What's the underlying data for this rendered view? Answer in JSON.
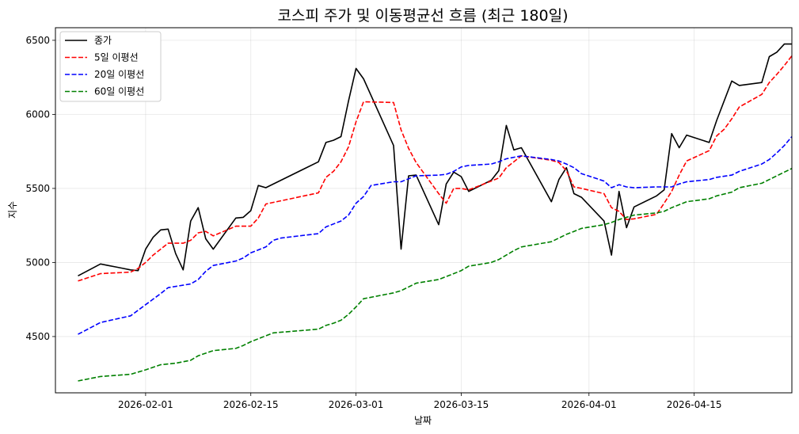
{
  "chart_data": {
    "type": "line",
    "title": "코스피 주가 및 이동평균선 흐름 (최근 180일)",
    "xlabel": "날짜",
    "ylabel": "지수",
    "x_range": [
      "2026-01-20",
      "2026-04-28"
    ],
    "ylim": [
      4120,
      6585
    ],
    "grid": true,
    "legend_position": "top-left",
    "x_ticks": [
      "2026-02-01",
      "2026-02-15",
      "2026-03-01",
      "2026-03-15",
      "2026-04-01",
      "2026-04-15"
    ],
    "y_ticks": [
      4500,
      5000,
      5500,
      6000,
      6500
    ],
    "series": [
      {
        "name": "종가",
        "color": "#000000",
        "dash": "solid",
        "points": [
          [
            "2026-01-23",
            4910
          ],
          [
            "2026-01-26",
            4990
          ],
          [
            "2026-01-27",
            4980
          ],
          [
            "2026-01-28",
            4970
          ],
          [
            "2026-01-29",
            4960
          ],
          [
            "2026-01-30",
            4950
          ],
          [
            "2026-01-31",
            4945
          ],
          [
            "2026-02-01",
            5090
          ],
          [
            "2026-02-02",
            5170
          ],
          [
            "2026-02-03",
            5220
          ],
          [
            "2026-02-04",
            5225
          ],
          [
            "2026-02-05",
            5060
          ],
          [
            "2026-02-06",
            4950
          ],
          [
            "2026-02-07",
            5280
          ],
          [
            "2026-02-08",
            5370
          ],
          [
            "2026-02-09",
            5160
          ],
          [
            "2026-02-10",
            5090
          ],
          [
            "2026-02-13",
            5300
          ],
          [
            "2026-02-14",
            5305
          ],
          [
            "2026-02-15",
            5350
          ],
          [
            "2026-02-16",
            5520
          ],
          [
            "2026-02-17",
            5505
          ],
          [
            "2026-02-24",
            5680
          ],
          [
            "2026-02-25",
            5810
          ],
          [
            "2026-02-26",
            5825
          ],
          [
            "2026-02-27",
            5850
          ],
          [
            "2026-02-28",
            6090
          ],
          [
            "2026-03-01",
            6310
          ],
          [
            "2026-03-02",
            6240
          ],
          [
            "2026-03-06",
            5790
          ],
          [
            "2026-03-07",
            5090
          ],
          [
            "2026-03-08",
            5585
          ],
          [
            "2026-03-09",
            5590
          ],
          [
            "2026-03-12",
            5255
          ],
          [
            "2026-03-13",
            5530
          ],
          [
            "2026-03-14",
            5610
          ],
          [
            "2026-03-15",
            5580
          ],
          [
            "2026-03-16",
            5480
          ],
          [
            "2026-03-19",
            5555
          ],
          [
            "2026-03-20",
            5620
          ],
          [
            "2026-03-21",
            5925
          ],
          [
            "2026-03-22",
            5760
          ],
          [
            "2026-03-23",
            5775
          ],
          [
            "2026-03-27",
            5410
          ],
          [
            "2026-03-28",
            5560
          ],
          [
            "2026-03-29",
            5640
          ],
          [
            "2026-03-30",
            5465
          ],
          [
            "2026-03-31",
            5440
          ],
          [
            "2026-04-03",
            5280
          ],
          [
            "2026-04-04",
            5050
          ],
          [
            "2026-04-05",
            5480
          ],
          [
            "2026-04-06",
            5235
          ],
          [
            "2026-04-07",
            5375
          ],
          [
            "2026-04-10",
            5450
          ],
          [
            "2026-04-11",
            5490
          ],
          [
            "2026-04-12",
            5870
          ],
          [
            "2026-04-13",
            5775
          ],
          [
            "2026-04-14",
            5860
          ],
          [
            "2026-04-17",
            5810
          ],
          [
            "2026-04-18",
            5960
          ],
          [
            "2026-04-20",
            6225
          ],
          [
            "2026-04-21",
            6195
          ],
          [
            "2026-04-24",
            6215
          ],
          [
            "2026-04-25",
            6390
          ],
          [
            "2026-04-26",
            6420
          ],
          [
            "2026-04-27",
            6475
          ],
          [
            "2026-04-28",
            6475
          ]
        ]
      },
      {
        "name": "5일 이평선",
        "color": "#ff0000",
        "dash": "dashed",
        "points": [
          [
            "2026-01-23",
            4875
          ],
          [
            "2026-01-26",
            4925
          ],
          [
            "2026-01-28",
            4930
          ],
          [
            "2026-01-30",
            4935
          ],
          [
            "2026-01-31",
            4960
          ],
          [
            "2026-02-01",
            5000
          ],
          [
            "2026-02-02",
            5050
          ],
          [
            "2026-02-03",
            5090
          ],
          [
            "2026-02-04",
            5130
          ],
          [
            "2026-02-05",
            5130
          ],
          [
            "2026-02-06",
            5130
          ],
          [
            "2026-02-07",
            5150
          ],
          [
            "2026-02-08",
            5200
          ],
          [
            "2026-02-09",
            5210
          ],
          [
            "2026-02-10",
            5180
          ],
          [
            "2026-02-13",
            5245
          ],
          [
            "2026-02-15",
            5245
          ],
          [
            "2026-02-16",
            5300
          ],
          [
            "2026-02-17",
            5395
          ],
          [
            "2026-02-24",
            5470
          ],
          [
            "2026-02-25",
            5575
          ],
          [
            "2026-02-26",
            5615
          ],
          [
            "2026-02-27",
            5680
          ],
          [
            "2026-02-28",
            5780
          ],
          [
            "2026-03-01",
            5950
          ],
          [
            "2026-03-02",
            6085
          ],
          [
            "2026-03-06",
            6080
          ],
          [
            "2026-03-07",
            5895
          ],
          [
            "2026-03-08",
            5770
          ],
          [
            "2026-03-09",
            5675
          ],
          [
            "2026-03-12",
            5465
          ],
          [
            "2026-03-13",
            5400
          ],
          [
            "2026-03-14",
            5500
          ],
          [
            "2026-03-15",
            5500
          ],
          [
            "2026-03-16",
            5490
          ],
          [
            "2026-03-19",
            5550
          ],
          [
            "2026-03-20",
            5570
          ],
          [
            "2026-03-21",
            5640
          ],
          [
            "2026-03-22",
            5680
          ],
          [
            "2026-03-23",
            5720
          ],
          [
            "2026-03-27",
            5690
          ],
          [
            "2026-03-28",
            5675
          ],
          [
            "2026-03-29",
            5620
          ],
          [
            "2026-03-30",
            5510
          ],
          [
            "2026-03-31",
            5500
          ],
          [
            "2026-04-03",
            5465
          ],
          [
            "2026-04-04",
            5370
          ],
          [
            "2026-04-05",
            5345
          ],
          [
            "2026-04-06",
            5290
          ],
          [
            "2026-04-07",
            5295
          ],
          [
            "2026-04-10",
            5325
          ],
          [
            "2026-04-11",
            5400
          ],
          [
            "2026-04-12",
            5480
          ],
          [
            "2026-04-13",
            5590
          ],
          [
            "2026-04-14",
            5685
          ],
          [
            "2026-04-17",
            5755
          ],
          [
            "2026-04-18",
            5855
          ],
          [
            "2026-04-19",
            5900
          ],
          [
            "2026-04-20",
            5970
          ],
          [
            "2026-04-21",
            6050
          ],
          [
            "2026-04-24",
            6135
          ],
          [
            "2026-04-25",
            6215
          ],
          [
            "2026-04-26",
            6270
          ],
          [
            "2026-04-27",
            6330
          ],
          [
            "2026-04-28",
            6395
          ]
        ]
      },
      {
        "name": "20일 이평선",
        "color": "#0000ff",
        "dash": "dashed",
        "points": [
          [
            "2026-01-23",
            4515
          ],
          [
            "2026-01-26",
            4595
          ],
          [
            "2026-01-30",
            4640
          ],
          [
            "2026-02-01",
            4715
          ],
          [
            "2026-02-03",
            4790
          ],
          [
            "2026-02-04",
            4830
          ],
          [
            "2026-02-07",
            4855
          ],
          [
            "2026-02-08",
            4885
          ],
          [
            "2026-02-09",
            4940
          ],
          [
            "2026-02-10",
            4980
          ],
          [
            "2026-02-13",
            5010
          ],
          [
            "2026-02-14",
            5030
          ],
          [
            "2026-02-15",
            5065
          ],
          [
            "2026-02-17",
            5105
          ],
          [
            "2026-02-18",
            5150
          ],
          [
            "2026-02-19",
            5165
          ],
          [
            "2026-02-24",
            5195
          ],
          [
            "2026-02-25",
            5240
          ],
          [
            "2026-02-27",
            5280
          ],
          [
            "2026-02-28",
            5320
          ],
          [
            "2026-03-01",
            5400
          ],
          [
            "2026-03-02",
            5445
          ],
          [
            "2026-03-03",
            5520
          ],
          [
            "2026-03-06",
            5545
          ],
          [
            "2026-03-07",
            5545
          ],
          [
            "2026-03-09",
            5585
          ],
          [
            "2026-03-12",
            5590
          ],
          [
            "2026-03-13",
            5595
          ],
          [
            "2026-03-14",
            5615
          ],
          [
            "2026-03-15",
            5645
          ],
          [
            "2026-03-16",
            5655
          ],
          [
            "2026-03-19",
            5665
          ],
          [
            "2026-03-20",
            5680
          ],
          [
            "2026-03-21",
            5700
          ],
          [
            "2026-03-22",
            5710
          ],
          [
            "2026-03-23",
            5720
          ],
          [
            "2026-03-27",
            5695
          ],
          [
            "2026-03-28",
            5685
          ],
          [
            "2026-03-29",
            5665
          ],
          [
            "2026-03-30",
            5640
          ],
          [
            "2026-03-31",
            5600
          ],
          [
            "2026-04-03",
            5550
          ],
          [
            "2026-04-04",
            5505
          ],
          [
            "2026-04-05",
            5525
          ],
          [
            "2026-04-06",
            5510
          ],
          [
            "2026-04-07",
            5505
          ],
          [
            "2026-04-10",
            5510
          ],
          [
            "2026-04-12",
            5510
          ],
          [
            "2026-04-13",
            5530
          ],
          [
            "2026-04-14",
            5545
          ],
          [
            "2026-04-17",
            5560
          ],
          [
            "2026-04-18",
            5575
          ],
          [
            "2026-04-20",
            5590
          ],
          [
            "2026-04-21",
            5615
          ],
          [
            "2026-04-24",
            5665
          ],
          [
            "2026-04-25",
            5695
          ],
          [
            "2026-04-26",
            5740
          ],
          [
            "2026-04-27",
            5790
          ],
          [
            "2026-04-28",
            5850
          ]
        ]
      },
      {
        "name": "60일 이평선",
        "color": "#008000",
        "dash": "dashed",
        "points": [
          [
            "2026-01-23",
            4200
          ],
          [
            "2026-01-26",
            4230
          ],
          [
            "2026-01-30",
            4245
          ],
          [
            "2026-02-01",
            4275
          ],
          [
            "2026-02-03",
            4310
          ],
          [
            "2026-02-05",
            4320
          ],
          [
            "2026-02-07",
            4340
          ],
          [
            "2026-02-08",
            4370
          ],
          [
            "2026-02-10",
            4405
          ],
          [
            "2026-02-13",
            4420
          ],
          [
            "2026-02-14",
            4440
          ],
          [
            "2026-02-15",
            4465
          ],
          [
            "2026-02-17",
            4505
          ],
          [
            "2026-02-18",
            4525
          ],
          [
            "2026-02-24",
            4550
          ],
          [
            "2026-02-25",
            4575
          ],
          [
            "2026-02-26",
            4590
          ],
          [
            "2026-02-27",
            4610
          ],
          [
            "2026-02-28",
            4650
          ],
          [
            "2026-03-01",
            4700
          ],
          [
            "2026-03-02",
            4755
          ],
          [
            "2026-03-06",
            4795
          ],
          [
            "2026-03-07",
            4810
          ],
          [
            "2026-03-08",
            4835
          ],
          [
            "2026-03-09",
            4860
          ],
          [
            "2026-03-12",
            4885
          ],
          [
            "2026-03-14",
            4925
          ],
          [
            "2026-03-15",
            4945
          ],
          [
            "2026-03-16",
            4975
          ],
          [
            "2026-03-19",
            5000
          ],
          [
            "2026-03-20",
            5020
          ],
          [
            "2026-03-21",
            5050
          ],
          [
            "2026-03-22",
            5080
          ],
          [
            "2026-03-23",
            5105
          ],
          [
            "2026-03-27",
            5140
          ],
          [
            "2026-03-28",
            5165
          ],
          [
            "2026-03-29",
            5190
          ],
          [
            "2026-03-30",
            5210
          ],
          [
            "2026-03-31",
            5230
          ],
          [
            "2026-04-03",
            5255
          ],
          [
            "2026-04-04",
            5270
          ],
          [
            "2026-04-05",
            5290
          ],
          [
            "2026-04-06",
            5305
          ],
          [
            "2026-04-07",
            5320
          ],
          [
            "2026-04-10",
            5335
          ],
          [
            "2026-04-11",
            5345
          ],
          [
            "2026-04-12",
            5370
          ],
          [
            "2026-04-13",
            5390
          ],
          [
            "2026-04-14",
            5410
          ],
          [
            "2026-04-17",
            5430
          ],
          [
            "2026-04-18",
            5450
          ],
          [
            "2026-04-20",
            5475
          ],
          [
            "2026-04-21",
            5505
          ],
          [
            "2026-04-24",
            5535
          ],
          [
            "2026-04-25",
            5560
          ],
          [
            "2026-04-26",
            5585
          ],
          [
            "2026-04-27",
            5610
          ],
          [
            "2026-04-28",
            5635
          ]
        ]
      }
    ]
  }
}
